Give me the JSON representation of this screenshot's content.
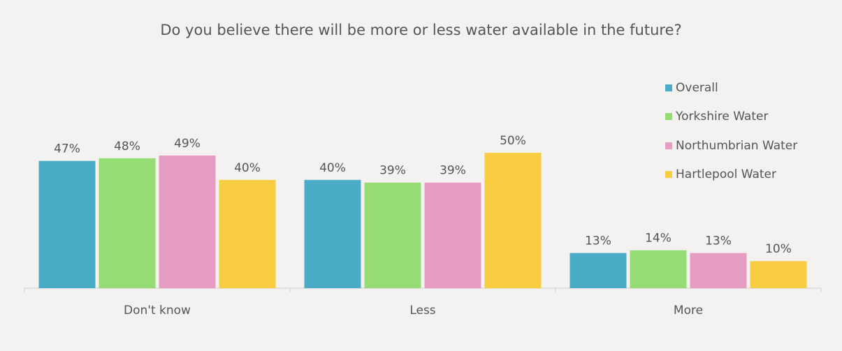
{
  "chart_data": {
    "type": "bar",
    "title": "Do you believe there will be more or less water available in the future?",
    "categories": [
      "Don't know",
      "Less",
      "More"
    ],
    "series": [
      {
        "name": "Overall",
        "color": "#4aacc6",
        "values": [
          47,
          40,
          13
        ],
        "labels": [
          "47%",
          "40%",
          "13%"
        ]
      },
      {
        "name": "Yorkshire Water",
        "color": "#95dc74",
        "values": [
          48,
          39,
          14
        ],
        "labels": [
          "48%",
          "39%",
          "14%"
        ]
      },
      {
        "name": "Northumbrian Water",
        "color": "#e79cc3",
        "values": [
          49,
          39,
          13
        ],
        "labels": [
          "49%",
          "39%",
          "13%"
        ]
      },
      {
        "name": "Hartlepool Water",
        "color": "#f8cd42",
        "values": [
          40,
          50,
          10
        ],
        "labels": [
          "40%",
          "50%",
          "10%"
        ]
      }
    ],
    "ylim": [
      0,
      50
    ],
    "grid": false,
    "legend_position": "right"
  }
}
